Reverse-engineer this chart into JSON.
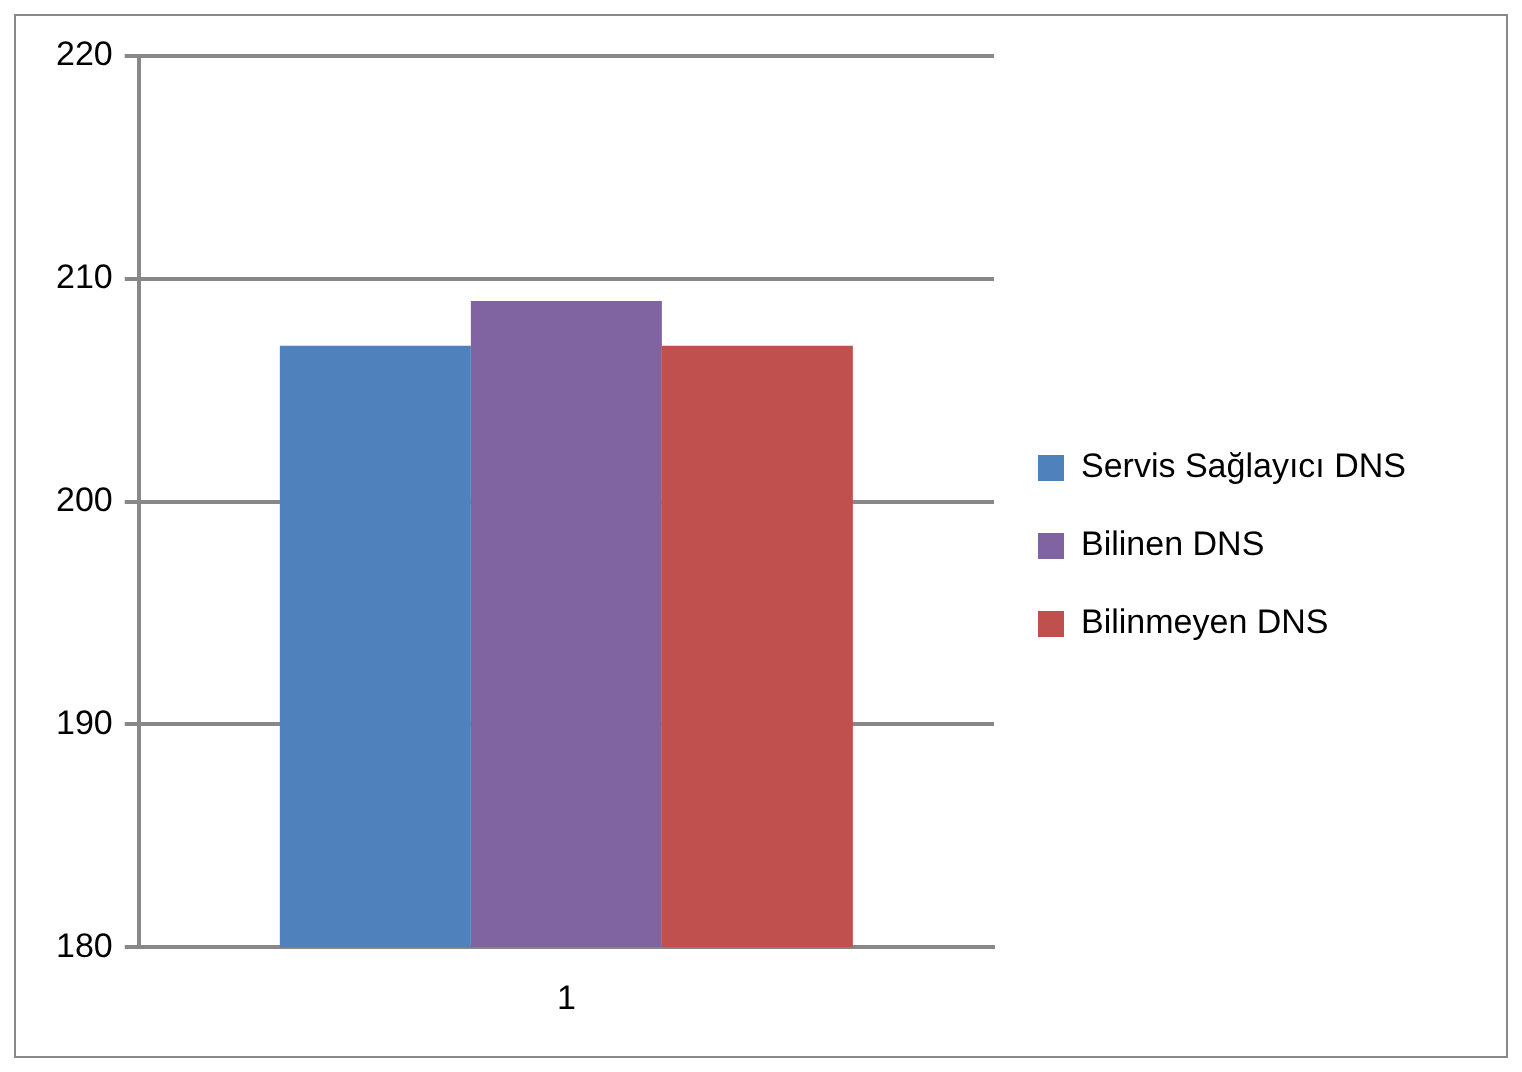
{
  "chart_data": {
    "type": "bar",
    "categories": [
      "1"
    ],
    "series": [
      {
        "name": "Servis Sağlayıcı DNS",
        "color": "#4f81bd",
        "values": [
          207
        ]
      },
      {
        "name": "Bilinen DNS",
        "color": "#8064a2",
        "values": [
          209
        ]
      },
      {
        "name": "Bilinmeyen DNS",
        "color": "#c0504d",
        "values": [
          207
        ]
      }
    ],
    "ylim": [
      180,
      220
    ],
    "yticks": [
      180,
      190,
      200,
      210,
      220
    ],
    "grid": "y",
    "legend": "right"
  }
}
